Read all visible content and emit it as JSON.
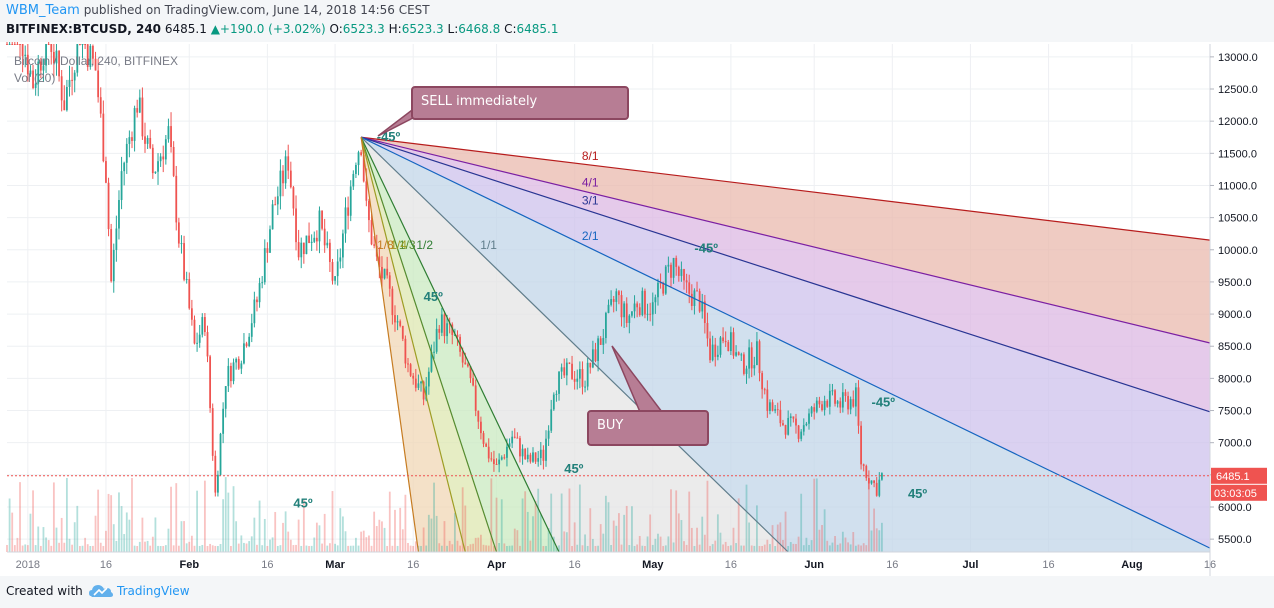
{
  "header": {
    "author": "WBM_Team",
    "published": "published on TradingView.com, June 14, 2018 14:56 CEST",
    "symbol": "BITFINEX:BTCUSD, 240",
    "last": "6485.1",
    "change": "+190.0 (+3.02%)",
    "ohlc": [
      {
        "label": "O:",
        "value": "6523.3"
      },
      {
        "label": "H:",
        "value": "6523.3"
      },
      {
        "label": "L:",
        "value": "6468.8"
      },
      {
        "label": "C:",
        "value": "6485.1"
      }
    ]
  },
  "legend": {
    "series_title": "Bitcoin / Dollar, 240, BITFINEX",
    "volume_title": "Vol (20)"
  },
  "callouts": {
    "sell": "SELL immediately",
    "buy": "BUY"
  },
  "price_badge": {
    "price": "6485.1",
    "countdown": "03:03:05"
  },
  "footer": {
    "created_with": "Created with",
    "brand": "TradingView"
  },
  "colors": {
    "up": "#26a69a",
    "down": "#ef5350",
    "accent": "#2196f3",
    "price_line": "#ef5350",
    "callout_fill": "#b77d94",
    "callout_border": "#8c4760"
  },
  "chart_data": {
    "type": "candlestick",
    "title": "Bitcoin / Dollar, 240, BITFINEX",
    "y_scale": "linear",
    "ylim": [
      5300,
      13200
    ],
    "y_ticks": [
      13000.0,
      12500.0,
      12000.0,
      11500.0,
      11000.0,
      10500.0,
      10000.0,
      9500.0,
      9000.0,
      8500.0,
      8000.0,
      7500.0,
      7000.0,
      6500.0,
      6000.0,
      5500.0
    ],
    "y_tick_labels": [
      "13000.0",
      "12500.0",
      "12000.0",
      "11500.0",
      "11000.0",
      "10500.0",
      "10000.0",
      "9500.0",
      "9000.0",
      "8500.0",
      "8000.0",
      "7500.0",
      "7000.0",
      "6500.0",
      "6000.0",
      "5500.0"
    ],
    "x_range": [
      "2017-12-28",
      "2018-08-16"
    ],
    "x_ticks": [
      {
        "date": "2018-01-01",
        "label": "2018"
      },
      {
        "date": "2018-01-16",
        "label": "16"
      },
      {
        "date": "2018-02-01",
        "label": "Feb"
      },
      {
        "date": "2018-02-16",
        "label": "16"
      },
      {
        "date": "2018-03-01",
        "label": "Mar"
      },
      {
        "date": "2018-03-16",
        "label": "16"
      },
      {
        "date": "2018-04-01",
        "label": "Apr"
      },
      {
        "date": "2018-04-16",
        "label": "16"
      },
      {
        "date": "2018-05-01",
        "label": "May"
      },
      {
        "date": "2018-05-16",
        "label": "16"
      },
      {
        "date": "2018-06-01",
        "label": "Jun"
      },
      {
        "date": "2018-06-16",
        "label": "16"
      },
      {
        "date": "2018-07-01",
        "label": "Jul"
      },
      {
        "date": "2018-07-16",
        "label": "16"
      },
      {
        "date": "2018-08-01",
        "label": "Aug"
      },
      {
        "date": "2018-08-16",
        "label": "16"
      }
    ],
    "price_path": [
      [
        "2017-12-28",
        14200
      ],
      [
        "2018-01-02",
        12600
      ],
      [
        "2018-01-05",
        13400
      ],
      [
        "2018-01-08",
        12300
      ],
      [
        "2018-01-11",
        13400
      ],
      [
        "2018-01-14",
        12800
      ],
      [
        "2018-01-16",
        11200
      ],
      [
        "2018-01-17",
        9500
      ],
      [
        "2018-01-19",
        11200
      ],
      [
        "2018-01-22",
        12300
      ],
      [
        "2018-01-25",
        11200
      ],
      [
        "2018-01-28",
        11800
      ],
      [
        "2018-01-30",
        10200
      ],
      [
        "2018-02-02",
        8500
      ],
      [
        "2018-02-04",
        8900
      ],
      [
        "2018-02-06",
        6200
      ],
      [
        "2018-02-08",
        8000
      ],
      [
        "2018-02-11",
        8400
      ],
      [
        "2018-02-14",
        9200
      ],
      [
        "2018-02-17",
        10600
      ],
      [
        "2018-02-20",
        11400
      ],
      [
        "2018-02-22",
        10000
      ],
      [
        "2018-02-26",
        10400
      ],
      [
        "2018-03-01",
        9400
      ],
      [
        "2018-03-03",
        10500
      ],
      [
        "2018-03-05",
        11500
      ],
      [
        "2018-03-06",
        11700
      ],
      [
        "2018-03-07",
        10600
      ],
      [
        "2018-03-09",
        9800
      ],
      [
        "2018-03-11",
        9400
      ],
      [
        "2018-03-13",
        8900
      ],
      [
        "2018-03-15",
        8200
      ],
      [
        "2018-03-18",
        7700
      ],
      [
        "2018-03-21",
        8900
      ],
      [
        "2018-03-24",
        8600
      ],
      [
        "2018-03-27",
        7900
      ],
      [
        "2018-03-30",
        6900
      ],
      [
        "2018-04-01",
        6600
      ],
      [
        "2018-04-04",
        7100
      ],
      [
        "2018-04-07",
        6700
      ],
      [
        "2018-04-10",
        6800
      ],
      [
        "2018-04-12",
        7900
      ],
      [
        "2018-04-15",
        8100
      ],
      [
        "2018-04-18",
        8000
      ],
      [
        "2018-04-21",
        8600
      ],
      [
        "2018-04-24",
        9300
      ],
      [
        "2018-04-26",
        8900
      ],
      [
        "2018-04-28",
        9200
      ],
      [
        "2018-05-01",
        9100
      ],
      [
        "2018-05-03",
        9500
      ],
      [
        "2018-05-05",
        9800
      ],
      [
        "2018-05-07",
        9400
      ],
      [
        "2018-05-10",
        9200
      ],
      [
        "2018-05-12",
        8400
      ],
      [
        "2018-05-15",
        8700
      ],
      [
        "2018-05-18",
        8200
      ],
      [
        "2018-05-21",
        8400
      ],
      [
        "2018-05-23",
        7600
      ],
      [
        "2018-05-26",
        7300
      ],
      [
        "2018-05-29",
        7200
      ],
      [
        "2018-06-01",
        7500
      ],
      [
        "2018-06-03",
        7700
      ],
      [
        "2018-06-06",
        7600
      ],
      [
        "2018-06-09",
        7700
      ],
      [
        "2018-06-10",
        6700
      ],
      [
        "2018-06-12",
        6400
      ],
      [
        "2018-06-13",
        6300
      ],
      [
        "2018-06-14",
        6485.1
      ]
    ],
    "last_price": 6485.1,
    "fan_origin": {
      "date": "2018-03-06",
      "price": 11750
    },
    "fan_lines": [
      {
        "label": "8/1",
        "end": {
          "date": "2018-08-16",
          "price": 10150
        }
      },
      {
        "label": "4/1",
        "end": {
          "date": "2018-08-16",
          "price": 8550
        }
      },
      {
        "label": "3/1",
        "end": {
          "date": "2018-08-16",
          "price": 7480
        }
      },
      {
        "label": "2/1",
        "end": {
          "date": "2018-08-16",
          "price": 5360
        }
      },
      {
        "label": "1/1",
        "end": {
          "date": "2018-05-27",
          "price": 5300
        }
      },
      {
        "label": "1/2",
        "end": {
          "date": "2018-04-13",
          "price": 5300
        }
      },
      {
        "label": "1/3",
        "end": {
          "date": "2018-04-01",
          "price": 5300
        }
      },
      {
        "label": "1/4",
        "end": {
          "date": "2018-03-26",
          "price": 5300
        }
      },
      {
        "label": "1/8",
        "end": {
          "date": "2018-03-17",
          "price": 5300
        }
      }
    ],
    "angle_markers": [
      {
        "label": "-45º",
        "at": {
          "date": "2018-03-09",
          "price": 11690
        }
      },
      {
        "label": "45º",
        "at": {
          "date": "2018-02-21",
          "price": 5990
        }
      },
      {
        "label": "45º",
        "at": {
          "date": "2018-04-14",
          "price": 6530
        }
      },
      {
        "label": "-45º",
        "at": {
          "date": "2018-05-09",
          "price": 9960
        }
      },
      {
        "label": "-45º",
        "at": {
          "date": "2018-06-12",
          "price": 7560
        }
      },
      {
        "label": "45º",
        "at": {
          "date": "2018-06-19",
          "price": 6140
        }
      },
      {
        "label": "45º",
        "at": {
          "date": "2018-03-18",
          "price": 9200
        }
      }
    ]
  }
}
